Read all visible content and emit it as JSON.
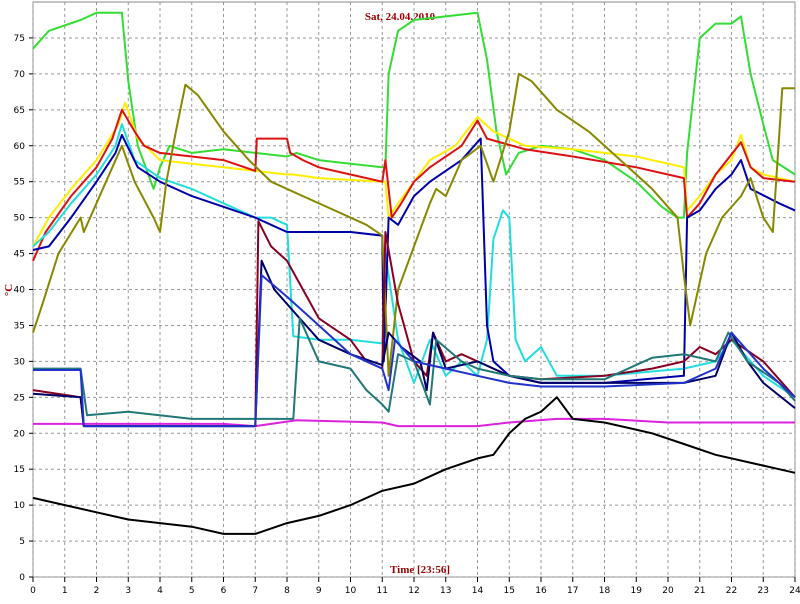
{
  "chart_data": {
    "type": "line",
    "title": "Sat, 24.04.2010",
    "xlabel": "Time [23:56]",
    "ylabel": "°C",
    "xlim": [
      0,
      24
    ],
    "ylim": [
      0,
      80
    ],
    "grid": true,
    "xticks": [
      0,
      1,
      2,
      3,
      4,
      5,
      6,
      7,
      8,
      9,
      10,
      11,
      12,
      13,
      14,
      15,
      16,
      17,
      18,
      19,
      20,
      21,
      22,
      23,
      24
    ],
    "yticks": [
      0,
      5,
      10,
      15,
      20,
      25,
      30,
      35,
      40,
      45,
      50,
      55,
      60,
      65,
      70,
      75
    ],
    "series": [
      {
        "color": "#33dd33",
        "x": [
          0,
          0.5,
          1.5,
          2,
          2.8,
          3,
          3.3,
          3.8,
          4,
          4.3,
          5,
          6,
          7,
          8,
          8.3,
          9,
          10,
          11,
          11.1,
          11.2,
          11.5,
          12,
          13,
          14,
          14.3,
          14.6,
          14.9,
          15.3,
          16,
          17,
          18,
          19,
          19.8,
          20.3,
          20.5,
          20.6,
          21,
          21.5,
          22,
          22.3,
          22.6,
          23,
          23.3,
          24
        ],
        "values": [
          73.5,
          76,
          77.5,
          78.5,
          78.5,
          69,
          60,
          54,
          57,
          60,
          59,
          59.5,
          59,
          58.5,
          59,
          58,
          57.5,
          57,
          57,
          70,
          76,
          77.5,
          78,
          78.5,
          72,
          62,
          56,
          59,
          60,
          59.5,
          58,
          55,
          51.5,
          50,
          50,
          59,
          75,
          77,
          77,
          78,
          70,
          63,
          58,
          56
        ]
      },
      {
        "color": "#ffee00",
        "x": [
          0,
          0.5,
          1.2,
          2,
          2.7,
          2.9,
          3.3,
          4,
          5,
          6,
          7,
          8,
          8.2,
          9,
          11,
          11.1,
          11.2,
          11.5,
          12,
          12.5,
          13.3,
          14,
          14.5,
          15.5,
          17,
          19,
          20.5,
          20.6,
          21,
          21.5,
          22,
          22.3,
          22.6,
          23,
          24
        ],
        "values": [
          46,
          50,
          54,
          58,
          63,
          66,
          61,
          58,
          57.5,
          57,
          56.5,
          56,
          56,
          55.5,
          55,
          55,
          50,
          52,
          55,
          58,
          60,
          64,
          62,
          60,
          59.5,
          58.5,
          57,
          51,
          53,
          56,
          58,
          61.5,
          57,
          56,
          55
        ]
      },
      {
        "color": "#dd1111",
        "x": [
          0,
          0.4,
          1.2,
          2,
          2.5,
          2.8,
          3.2,
          3.5,
          4,
          5,
          6,
          7,
          7.05,
          8,
          8.1,
          8.5,
          9,
          10,
          11,
          11.1,
          11.3,
          11.6,
          12,
          12.5,
          13.5,
          14,
          14.3,
          15.5,
          17,
          19,
          20.5,
          20.6,
          21,
          21.5,
          22.3,
          22.6,
          23,
          24
        ],
        "values": [
          44,
          48,
          53,
          57,
          61,
          65,
          62,
          60,
          59,
          58.5,
          58,
          56.5,
          61,
          61,
          59,
          58,
          57,
          56,
          55,
          58,
          50,
          52,
          55,
          57,
          60,
          63.5,
          61,
          59.5,
          58.5,
          57,
          55.5,
          50,
          52,
          56,
          60.5,
          57,
          55.5,
          55
        ]
      },
      {
        "color": "#22dddd",
        "x": [
          0,
          0.5,
          1.2,
          2,
          2.6,
          2.8,
          3.2,
          4,
          5,
          6,
          7,
          7.5,
          8,
          8.2,
          9,
          10,
          11,
          11.1,
          11.5,
          12,
          12.5,
          13,
          13.5,
          14,
          14.3,
          14.5,
          14.8,
          15,
          15.2,
          15.5,
          16,
          16.5,
          18,
          20.5,
          21.5,
          22,
          23,
          24
        ],
        "values": [
          46,
          48,
          52,
          56,
          60,
          63,
          58,
          55.5,
          54,
          52,
          50,
          50,
          49,
          33.5,
          33,
          33,
          32.5,
          45,
          33,
          27,
          33,
          28,
          30,
          28,
          33,
          47,
          51,
          50,
          33,
          30,
          32,
          28,
          28,
          29,
          30,
          33,
          28,
          25
        ]
      },
      {
        "color": "#0000aa",
        "x": [
          0,
          0.5,
          1.2,
          2,
          2.6,
          2.8,
          3.3,
          4,
          5,
          6,
          7,
          7.5,
          8,
          9,
          10,
          11,
          11.05,
          11.2,
          11.5,
          12,
          12.5,
          13.5,
          14.1,
          14.3,
          14.5,
          15,
          16,
          18,
          20.5,
          20.6,
          21,
          21.5,
          22,
          22.3,
          22.6,
          23.5,
          24
        ],
        "values": [
          45.5,
          46,
          50,
          55,
          59,
          61.5,
          57,
          55,
          53,
          51.5,
          50,
          49,
          48,
          48,
          48,
          47.5,
          30,
          50,
          49,
          53,
          55,
          58,
          61,
          35,
          30,
          28,
          27,
          27,
          28,
          50,
          51,
          54,
          56,
          58,
          54,
          52,
          51
        ]
      },
      {
        "color": "#888800",
        "x": [
          0,
          0.3,
          0.8,
          1.5,
          1.6,
          2.3,
          2.8,
          3.2,
          3.8,
          4,
          4.2,
          4.5,
          4.8,
          5.2,
          6,
          6.8,
          7.5,
          8.5,
          9.5,
          10.5,
          11,
          11.2,
          11.5,
          12,
          12.5,
          12.7,
          13,
          13.5,
          14.1,
          14.5,
          15,
          15.3,
          15.7,
          16.5,
          17.5,
          18.5,
          19.5,
          20.3,
          20.5,
          20.7,
          21.2,
          21.7,
          22.3,
          22.6,
          23,
          23.3,
          23.6,
          24
        ],
        "values": [
          34,
          38,
          45,
          50,
          48,
          55,
          60,
          55,
          50,
          48,
          55,
          62,
          68.5,
          67,
          62,
          58,
          55,
          53,
          51,
          49,
          47.5,
          28,
          40,
          46,
          52,
          54,
          53,
          58,
          60,
          55,
          62,
          70,
          69,
          65,
          62,
          58,
          54,
          50,
          42,
          35,
          45,
          50,
          53,
          55.5,
          50,
          48,
          68,
          68
        ]
      },
      {
        "color": "#dd22dd",
        "x": [
          0,
          6,
          7,
          8.3,
          11,
          11.5,
          14,
          15,
          16.5,
          18,
          20,
          24
        ],
        "values": [
          21.3,
          21.3,
          21,
          21.8,
          21.5,
          21,
          21,
          21.5,
          22,
          22,
          21.5,
          21.5
        ]
      },
      {
        "color": "#000000",
        "x": [
          0,
          1,
          2,
          3,
          4,
          5,
          6,
          7,
          8,
          9,
          10,
          11,
          12,
          13,
          14,
          14.5,
          15,
          15.5,
          16,
          16.5,
          17,
          18,
          19.5,
          20.5,
          21.5,
          22.5,
          23.5,
          24
        ],
        "values": [
          11,
          10,
          9,
          8,
          7.5,
          7,
          6,
          6,
          7.5,
          8.5,
          10,
          12,
          13,
          15,
          16.5,
          17,
          20,
          22,
          23,
          25,
          22,
          21.5,
          20,
          18.5,
          17,
          16,
          15,
          14.5
        ]
      },
      {
        "color": "#880022",
        "x": [
          0,
          1.5,
          1.6,
          4,
          7,
          7.1,
          7.5,
          8,
          8.5,
          9,
          10,
          10.5,
          11,
          11.1,
          11.5,
          12,
          12.4,
          12.6,
          13,
          13.5,
          14,
          14.5,
          15,
          16,
          18,
          19.5,
          20.5,
          21,
          21.5,
          22,
          23,
          24
        ],
        "values": [
          26,
          25,
          21,
          21,
          21,
          49.5,
          46,
          44,
          40,
          36,
          33,
          30,
          29,
          48,
          38,
          30,
          28,
          34,
          30,
          31,
          30,
          29,
          28,
          27.5,
          28,
          29,
          30,
          32,
          31,
          33,
          30,
          25
        ]
      },
      {
        "color": "#000066",
        "x": [
          0,
          1.5,
          1.6,
          7,
          7.2,
          7.6,
          8.2,
          9,
          10,
          11,
          11.2,
          11.6,
          12.2,
          12.4,
          12.6,
          13,
          14,
          15,
          16,
          18,
          20.5,
          21.5,
          22,
          22.5,
          23,
          24
        ],
        "values": [
          25.5,
          25,
          21,
          21,
          44,
          40,
          37,
          33,
          31,
          29.5,
          34,
          32,
          30,
          26,
          34,
          29,
          30,
          28,
          27,
          27,
          27,
          28,
          34,
          30,
          27,
          23.5
        ]
      },
      {
        "color": "#227777",
        "x": [
          0,
          1.5,
          1.7,
          3,
          5,
          8.2,
          8.4,
          9,
          10,
          10.5,
          11,
          11.2,
          11.5,
          12,
          12.5,
          12.7,
          13.5,
          14,
          15,
          16,
          18,
          19.5,
          20.5,
          21.5,
          21.9,
          22.5,
          23.5,
          24
        ],
        "values": [
          29,
          29,
          22.5,
          23,
          22,
          22,
          36,
          30,
          29,
          26,
          24,
          23,
          31,
          30,
          24,
          33,
          30,
          29,
          28,
          27.5,
          27.5,
          30.5,
          31,
          30,
          34,
          30,
          27,
          24.5
        ]
      },
      {
        "color": "#2233cc",
        "x": [
          0,
          1.5,
          1.6,
          7,
          7.2,
          8,
          9,
          10,
          11,
          11.2,
          11.4,
          12,
          13,
          14,
          15,
          16,
          18,
          20.5,
          21.5,
          22,
          23,
          24
        ],
        "values": [
          28.8,
          28.8,
          21,
          21,
          42,
          39,
          35,
          31,
          29,
          26,
          33,
          30,
          29,
          28,
          27,
          26.5,
          26.5,
          27,
          29,
          34,
          29,
          25
        ]
      }
    ]
  }
}
